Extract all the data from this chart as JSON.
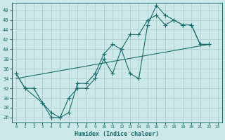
{
  "xlabel": "Humidex (Indice chaleur)",
  "background_color": "#cce8e8",
  "grid_color": "#aacccc",
  "line_color": "#1a6b6b",
  "xlim": [
    -0.5,
    23.5
  ],
  "ylim": [
    25,
    49.5
  ],
  "yticks": [
    26,
    28,
    30,
    32,
    34,
    36,
    38,
    40,
    42,
    44,
    46,
    48
  ],
  "xticks": [
    0,
    1,
    2,
    3,
    4,
    5,
    6,
    7,
    8,
    9,
    10,
    11,
    12,
    13,
    14,
    15,
    16,
    17,
    18,
    19,
    20,
    21,
    22,
    23
  ],
  "line1_x": [
    0,
    1,
    2,
    3,
    4,
    5,
    6,
    7,
    8,
    9,
    10,
    11,
    12,
    13,
    14,
    15,
    16,
    17,
    18,
    19,
    20,
    21,
    22
  ],
  "line1_y": [
    35,
    32,
    32,
    29,
    27,
    26,
    27,
    33,
    33,
    35,
    39,
    41,
    40,
    35,
    34,
    45,
    49,
    47,
    46,
    45,
    45,
    41,
    41
  ],
  "line2_x": [
    0,
    1,
    3,
    4,
    5,
    6,
    7,
    8,
    9,
    10,
    11,
    12,
    13,
    14,
    15,
    16,
    17,
    18,
    19,
    20,
    21,
    22
  ],
  "line2_y": [
    35,
    32,
    29,
    26,
    26,
    30,
    32,
    32,
    34,
    38,
    35,
    40,
    43,
    43,
    46,
    47,
    45,
    46,
    45,
    45,
    41,
    41
  ],
  "line3_x": [
    0,
    22
  ],
  "line3_y": [
    34,
    41
  ]
}
